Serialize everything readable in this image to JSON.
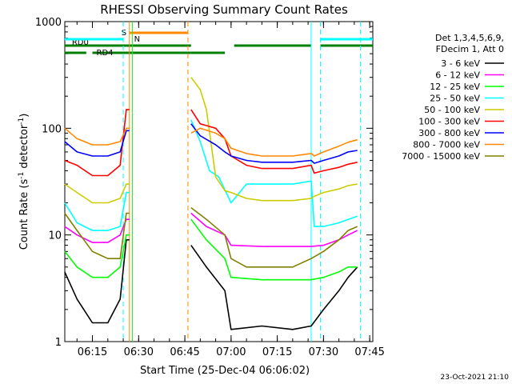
{
  "chart_data": {
    "type": "line",
    "title": "RHESSI Observing Summary Count Rates",
    "xlabel": "Start Time (25-Dec-04 06:06:02)",
    "ylabel_main": "Count Rate (s",
    "ylabel_sup": "-1",
    "ylabel_tail": " detector",
    "ylabel_sup2": "-1",
    "ylabel_end": ")",
    "y_scale": "log",
    "ylim": [
      1,
      1000
    ],
    "xlim": [
      "06:06:02",
      "07:46:00"
    ],
    "x_ticks": [
      "06:15",
      "06:30",
      "06:45",
      "07:00",
      "07:15",
      "07:30",
      "07:45"
    ],
    "y_ticks": [
      "1",
      "10",
      "100",
      "1000"
    ],
    "legend_header": [
      "Det 1,3,4,5,6,9,",
      "FDecim 1, Att 0"
    ],
    "series": [
      {
        "name": "3 - 6 keV",
        "color": "#000000",
        "points": [
          [
            "06:06",
            4.5
          ],
          [
            "06:10",
            2.5
          ],
          [
            "06:15",
            1.5
          ],
          [
            "06:20",
            1.5
          ],
          [
            "06:24",
            2.5
          ],
          [
            "06:26",
            9
          ],
          [
            "06:27",
            9
          ],
          [
            "06:47",
            8
          ],
          [
            "06:52",
            5
          ],
          [
            "06:58",
            3
          ],
          [
            "07:00",
            1.3
          ],
          [
            "07:10",
            1.4
          ],
          [
            "07:20",
            1.3
          ],
          [
            "07:26",
            1.4
          ],
          [
            "07:30",
            2
          ],
          [
            "07:35",
            3
          ],
          [
            "07:38",
            4
          ],
          [
            "07:41",
            5
          ]
        ]
      },
      {
        "name": "6 - 12 keV",
        "color": "#ff00ff",
        "points": [
          [
            "06:06",
            12
          ],
          [
            "06:10",
            10
          ],
          [
            "06:15",
            8.5
          ],
          [
            "06:20",
            8.5
          ],
          [
            "06:24",
            10
          ],
          [
            "06:26",
            14
          ],
          [
            "06:27",
            14
          ],
          [
            "06:47",
            16
          ],
          [
            "06:52",
            12
          ],
          [
            "06:58",
            10
          ],
          [
            "07:00",
            8
          ],
          [
            "07:10",
            7.8
          ],
          [
            "07:20",
            7.8
          ],
          [
            "07:26",
            7.8
          ],
          [
            "07:30",
            8
          ],
          [
            "07:35",
            9
          ],
          [
            "07:38",
            10
          ],
          [
            "07:41",
            11
          ]
        ]
      },
      {
        "name": "12 - 25 keV",
        "color": "#00ff00",
        "points": [
          [
            "06:06",
            7
          ],
          [
            "06:10",
            5
          ],
          [
            "06:15",
            4
          ],
          [
            "06:20",
            4
          ],
          [
            "06:24",
            5
          ],
          [
            "06:26",
            10
          ],
          [
            "06:27",
            10
          ],
          [
            "06:47",
            14
          ],
          [
            "06:52",
            9
          ],
          [
            "06:58",
            6
          ],
          [
            "07:00",
            4
          ],
          [
            "07:10",
            3.8
          ],
          [
            "07:20",
            3.8
          ],
          [
            "07:26",
            3.8
          ],
          [
            "07:30",
            4
          ],
          [
            "07:35",
            4.5
          ],
          [
            "07:38",
            5
          ],
          [
            "07:41",
            5
          ]
        ]
      },
      {
        "name": "25 - 50 keV",
        "color": "#00ffff",
        "points": [
          [
            "06:06",
            20
          ],
          [
            "06:10",
            13
          ],
          [
            "06:15",
            11
          ],
          [
            "06:20",
            11
          ],
          [
            "06:24",
            12
          ],
          [
            "06:26",
            25
          ],
          [
            "06:27",
            25
          ],
          [
            "06:47",
            120
          ],
          [
            "06:50",
            75
          ],
          [
            "06:53",
            40
          ],
          [
            "06:56",
            35
          ],
          [
            "07:00",
            20
          ],
          [
            "07:05",
            30
          ],
          [
            "07:10",
            30
          ],
          [
            "07:20",
            30
          ],
          [
            "07:26",
            32
          ],
          [
            "07:27",
            12
          ],
          [
            "07:30",
            12
          ],
          [
            "07:35",
            13
          ],
          [
            "07:38",
            14
          ],
          [
            "07:41",
            15
          ]
        ]
      },
      {
        "name": "50 - 100 keV",
        "color": "#cccc00",
        "points": [
          [
            "06:06",
            30
          ],
          [
            "06:10",
            25
          ],
          [
            "06:15",
            20
          ],
          [
            "06:20",
            20
          ],
          [
            "06:24",
            22
          ],
          [
            "06:26",
            30
          ],
          [
            "06:27",
            30
          ],
          [
            "06:47",
            300
          ],
          [
            "06:50",
            230
          ],
          [
            "06:52",
            150
          ],
          [
            "06:55",
            35
          ],
          [
            "06:58",
            26
          ],
          [
            "07:00",
            25
          ],
          [
            "07:05",
            22
          ],
          [
            "07:10",
            21
          ],
          [
            "07:20",
            21
          ],
          [
            "07:26",
            22
          ],
          [
            "07:27",
            23
          ],
          [
            "07:30",
            25
          ],
          [
            "07:35",
            27
          ],
          [
            "07:38",
            29
          ],
          [
            "07:41",
            30
          ]
        ]
      },
      {
        "name": "100 - 300 keV",
        "color": "#ff0000",
        "points": [
          [
            "06:06",
            50
          ],
          [
            "06:10",
            45
          ],
          [
            "06:15",
            36
          ],
          [
            "06:20",
            36
          ],
          [
            "06:24",
            45
          ],
          [
            "06:26",
            150
          ],
          [
            "06:27",
            150
          ],
          [
            "06:47",
            150
          ],
          [
            "06:50",
            110
          ],
          [
            "06:55",
            100
          ],
          [
            "06:58",
            80
          ],
          [
            "07:00",
            55
          ],
          [
            "07:05",
            45
          ],
          [
            "07:10",
            42
          ],
          [
            "07:20",
            42
          ],
          [
            "07:26",
            45
          ],
          [
            "07:27",
            38
          ],
          [
            "07:30",
            40
          ],
          [
            "07:35",
            43
          ],
          [
            "07:38",
            46
          ],
          [
            "07:41",
            48
          ]
        ]
      },
      {
        "name": "300 - 800 keV",
        "color": "#0000ff",
        "points": [
          [
            "06:06",
            75
          ],
          [
            "06:10",
            60
          ],
          [
            "06:15",
            55
          ],
          [
            "06:20",
            55
          ],
          [
            "06:24",
            60
          ],
          [
            "06:26",
            95
          ],
          [
            "06:27",
            95
          ],
          [
            "06:47",
            110
          ],
          [
            "06:50",
            85
          ],
          [
            "06:55",
            70
          ],
          [
            "06:58",
            60
          ],
          [
            "07:00",
            55
          ],
          [
            "07:05",
            50
          ],
          [
            "07:10",
            48
          ],
          [
            "07:20",
            48
          ],
          [
            "07:26",
            50
          ],
          [
            "07:27",
            47
          ],
          [
            "07:30",
            50
          ],
          [
            "07:35",
            55
          ],
          [
            "07:38",
            60
          ],
          [
            "07:41",
            62
          ]
        ]
      },
      {
        "name": "800 - 7000 keV",
        "color": "#ff8800",
        "points": [
          [
            "06:06",
            100
          ],
          [
            "06:10",
            80
          ],
          [
            "06:15",
            70
          ],
          [
            "06:20",
            70
          ],
          [
            "06:24",
            75
          ],
          [
            "06:26",
            100
          ],
          [
            "06:27",
            100
          ],
          [
            "06:47",
            90
          ],
          [
            "06:50",
            100
          ],
          [
            "06:55",
            90
          ],
          [
            "06:58",
            80
          ],
          [
            "07:00",
            65
          ],
          [
            "07:05",
            58
          ],
          [
            "07:10",
            55
          ],
          [
            "07:20",
            55
          ],
          [
            "07:26",
            58
          ],
          [
            "07:27",
            55
          ],
          [
            "07:30",
            60
          ],
          [
            "07:35",
            68
          ],
          [
            "07:38",
            74
          ],
          [
            "07:41",
            78
          ]
        ]
      },
      {
        "name": "7000 - 15000 keV",
        "color": "#808000",
        "points": [
          [
            "06:06",
            16
          ],
          [
            "06:10",
            11
          ],
          [
            "06:15",
            7
          ],
          [
            "06:20",
            6
          ],
          [
            "06:24",
            6
          ],
          [
            "06:26",
            16
          ],
          [
            "06:27",
            16
          ],
          [
            "06:47",
            18
          ],
          [
            "06:52",
            14
          ],
          [
            "06:58",
            10
          ],
          [
            "07:00",
            6
          ],
          [
            "07:05",
            5
          ],
          [
            "07:10",
            5
          ],
          [
            "07:20",
            5
          ],
          [
            "07:26",
            6
          ],
          [
            "07:30",
            7
          ],
          [
            "07:35",
            9
          ],
          [
            "07:38",
            11
          ],
          [
            "07:41",
            12
          ]
        ]
      }
    ],
    "annotations": [
      {
        "label": "RD0",
        "color": "#008000",
        "level": "upper",
        "segments": [
          [
            "06:06",
            "06:47"
          ],
          [
            "07:01",
            "07:26"
          ],
          [
            "07:29",
            "07:46"
          ]
        ]
      },
      {
        "label": "RD4",
        "color": "#008000",
        "level": "lower",
        "segments": [
          [
            "06:06",
            "06:13"
          ],
          [
            "06:15",
            "06:47"
          ],
          [
            "06:47",
            "06:58"
          ]
        ]
      },
      {
        "label": "S",
        "color": "#ff8800",
        "segments": [
          [
            "06:27",
            "06:46"
          ]
        ]
      },
      {
        "label": "N",
        "color": "#00ffff",
        "segments": [
          [
            "06:06",
            "06:25"
          ],
          [
            "07:29",
            "07:46"
          ]
        ]
      }
    ],
    "vlines": [
      {
        "at": "06:25",
        "color": "#00ffff",
        "style": "dashed"
      },
      {
        "at": "06:27",
        "color": "#ff8800",
        "style": "solid"
      },
      {
        "at": "06:28",
        "color": "#00ff00",
        "style": "solid"
      },
      {
        "at": "06:46",
        "color": "#ff8800",
        "style": "dashed"
      },
      {
        "at": "07:26",
        "color": "#00ffff",
        "style": "solid"
      },
      {
        "at": "07:29",
        "color": "#00ffff",
        "style": "dashed"
      },
      {
        "at": "07:42",
        "color": "#00ffff",
        "style": "dashed"
      }
    ],
    "gaps": [
      [
        "06:30",
        "06:47"
      ]
    ],
    "grid": false,
    "legend_position": "right"
  },
  "footer_timestamp": "23-Oct-2021 21:10"
}
